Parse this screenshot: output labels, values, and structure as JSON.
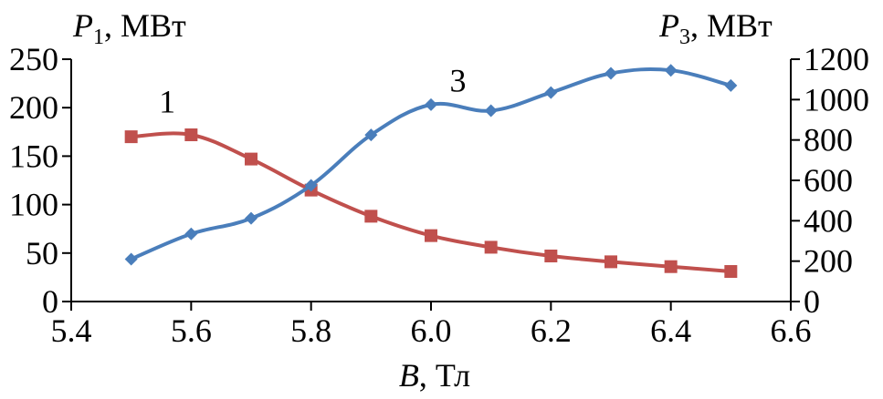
{
  "chart_data": {
    "type": "line",
    "x": [
      5.5,
      5.6,
      5.7,
      5.8,
      5.9,
      6.0,
      6.1,
      6.2,
      6.3,
      6.4,
      6.5
    ],
    "series": [
      {
        "name": "1",
        "axis": "left",
        "color": "#c0504d",
        "marker": "square",
        "values": [
          170,
          172,
          147,
          115,
          88,
          68,
          56,
          47,
          41,
          36,
          31
        ]
      },
      {
        "name": "3",
        "axis": "right",
        "color": "#4a7ebb",
        "marker": "diamond",
        "values": [
          210,
          335,
          412,
          575,
          825,
          975,
          945,
          1035,
          1130,
          1145,
          1070
        ]
      }
    ],
    "xlim": [
      5.4,
      6.6
    ],
    "xticks": [
      "5.4",
      "5.6",
      "5.8",
      "6.0",
      "6.2",
      "6.4",
      "6.6"
    ],
    "ylim_left": [
      0,
      250
    ],
    "yticks_left": [
      "0",
      "50",
      "100",
      "150",
      "200",
      "250"
    ],
    "ylim_right": [
      0,
      1200
    ],
    "yticks_right": [
      "0",
      "200",
      "400",
      "600",
      "800",
      "1000",
      "1200"
    ],
    "xlabel": {
      "var": "B",
      "unit": ", Тл"
    },
    "ylabel_left": {
      "var": "P",
      "sub": "1",
      "unit": ", МВт"
    },
    "ylabel_right": {
      "var": "P",
      "sub": "3",
      "unit": ", МВт"
    },
    "grid": false
  }
}
